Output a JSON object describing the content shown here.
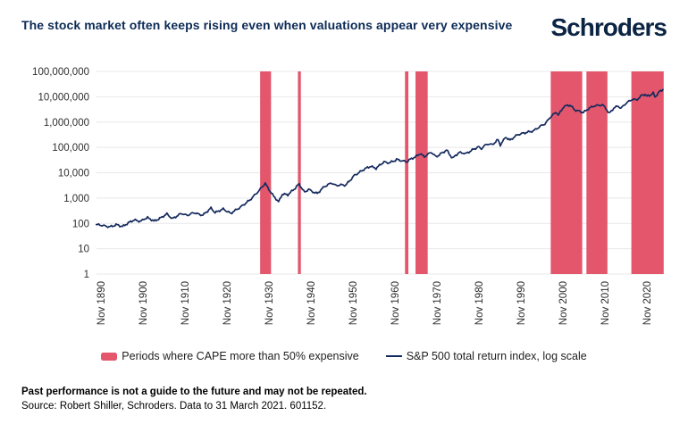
{
  "header": {
    "title": "The stock market often keeps rising even when valuations appear very expensive",
    "logo": "Schroders"
  },
  "colors": {
    "title_navy": "#0d2b57",
    "logo_navy": "#0c2444",
    "line_navy": "#152a5e",
    "band_red": "#e3566c",
    "grid_gray": "#e8e8e8",
    "axis_text": "#2e2e2e"
  },
  "legend": {
    "items": [
      {
        "type": "band",
        "label": "Periods where CAPE more than 50% expensive"
      },
      {
        "type": "line",
        "label": "S&P 500 total return index, log scale"
      }
    ]
  },
  "footer": {
    "disclaimer": "Past performance is not a guide to the future and may not be repeated.",
    "source": "Source: Robert Shiller, Schroders. Data to 31 March 2021. 601152."
  },
  "chart_data": {
    "type": "line",
    "title": "The stock market often keeps rising even when valuations appear very expensive",
    "y_axis": {
      "scale": "log",
      "ylim": [
        1,
        100000000
      ],
      "ticks": [
        {
          "value": 100000000,
          "label": "100,000,000"
        },
        {
          "value": 10000000,
          "label": "10,000,000"
        },
        {
          "value": 1000000,
          "label": "1,000,000"
        },
        {
          "value": 100000,
          "label": "100,000"
        },
        {
          "value": 10000,
          "label": "10,000"
        },
        {
          "value": 1000,
          "label": "1,000"
        },
        {
          "value": 100,
          "label": "100"
        },
        {
          "value": 10,
          "label": "10"
        },
        {
          "value": 1,
          "label": "1"
        }
      ]
    },
    "x_axis": {
      "ticks": [
        {
          "year": 1890,
          "label": "Nov 1890"
        },
        {
          "year": 1900,
          "label": "Nov 1900"
        },
        {
          "year": 1910,
          "label": "Nov 1910"
        },
        {
          "year": 1920,
          "label": "Nov 1920"
        },
        {
          "year": 1930,
          "label": "Nov 1930"
        },
        {
          "year": 1940,
          "label": "Nov 1940"
        },
        {
          "year": 1950,
          "label": "Nov 1950"
        },
        {
          "year": 1960,
          "label": "Nov 1960"
        },
        {
          "year": 1970,
          "label": "Nov 1970"
        },
        {
          "year": 1980,
          "label": "Nov 1980"
        },
        {
          "year": 1990,
          "label": "Nov 1990"
        },
        {
          "year": 2000,
          "label": "Nov 2000"
        },
        {
          "year": 2010,
          "label": "Nov 2010"
        },
        {
          "year": 2020,
          "label": "Nov 2020"
        }
      ]
    },
    "bands": {
      "name": "Periods where CAPE more than 50% expensive",
      "color": "#e3566c",
      "ranges": [
        [
          1927.9,
          1930.5
        ],
        [
          1936.9,
          1937.6
        ],
        [
          1962.4,
          1963.2
        ],
        [
          1964.9,
          1967.8
        ],
        [
          1997.1,
          2004.6
        ],
        [
          2005.6,
          2010.6
        ],
        [
          2016.3,
          2024.0
        ]
      ]
    },
    "series": [
      {
        "name": "S&P 500 total return index, log scale",
        "color": "#152a5e",
        "points": [
          [
            1888.9,
            87
          ],
          [
            1890.0,
            83
          ],
          [
            1891.9,
            74
          ],
          [
            1893.6,
            87
          ],
          [
            1895.1,
            77
          ],
          [
            1897.9,
            135
          ],
          [
            1899.6,
            124
          ],
          [
            1901.1,
            173
          ],
          [
            1902.6,
            120
          ],
          [
            1905.7,
            230
          ],
          [
            1907.0,
            148
          ],
          [
            1909.1,
            240
          ],
          [
            1910.6,
            213
          ],
          [
            1912.3,
            260
          ],
          [
            1914.3,
            213
          ],
          [
            1916.2,
            390
          ],
          [
            1917.2,
            260
          ],
          [
            1919.1,
            360
          ],
          [
            1920.9,
            240
          ],
          [
            1923.4,
            475
          ],
          [
            1925.5,
            875
          ],
          [
            1927.7,
            1970
          ],
          [
            1929.1,
            3800
          ],
          [
            1930.0,
            2230
          ],
          [
            1931.1,
            1160
          ],
          [
            1932.3,
            720
          ],
          [
            1933.2,
            1430
          ],
          [
            1934.5,
            1310
          ],
          [
            1935.7,
            2060
          ],
          [
            1937.2,
            3480
          ],
          [
            1938.5,
            1620
          ],
          [
            1939.4,
            2330
          ],
          [
            1940.2,
            1890
          ],
          [
            1941.5,
            1550
          ],
          [
            1943.2,
            2740
          ],
          [
            1944.9,
            4100
          ],
          [
            1946.0,
            3100
          ],
          [
            1948.3,
            3350
          ],
          [
            1950.4,
            8200
          ],
          [
            1952.6,
            13200
          ],
          [
            1954.3,
            18400
          ],
          [
            1955.5,
            14500
          ],
          [
            1957.4,
            26700
          ],
          [
            1958.9,
            24500
          ],
          [
            1960.4,
            33900
          ],
          [
            1962.8,
            26700
          ],
          [
            1964.5,
            40000
          ],
          [
            1966.0,
            55400
          ],
          [
            1967.0,
            41700
          ],
          [
            1968.7,
            65000
          ],
          [
            1969.8,
            43500
          ],
          [
            1971.1,
            60000
          ],
          [
            1972.3,
            76700
          ],
          [
            1973.8,
            37100
          ],
          [
            1975.3,
            65000
          ],
          [
            1976.8,
            55400
          ],
          [
            1978.7,
            86000
          ],
          [
            1979.8,
            106000
          ],
          [
            1980.6,
            90000
          ],
          [
            1982.1,
            142000
          ],
          [
            1983.2,
            131000
          ],
          [
            1984.5,
            205000
          ],
          [
            1985.1,
            123000
          ],
          [
            1986.4,
            253000
          ],
          [
            1987.4,
            192000
          ],
          [
            1989.4,
            325000
          ],
          [
            1991.5,
            400000
          ],
          [
            1993.2,
            470000
          ],
          [
            1995.7,
            860000
          ],
          [
            1997.2,
            1660000
          ],
          [
            1998.5,
            2420000
          ],
          [
            1998.9,
            1900000
          ],
          [
            2000.2,
            4200000
          ],
          [
            2001.7,
            4600000
          ],
          [
            2002.8,
            3100000
          ],
          [
            2003.9,
            2750000
          ],
          [
            2004.9,
            2450000
          ],
          [
            2006.0,
            3400000
          ],
          [
            2007.4,
            4200000
          ],
          [
            2009.4,
            4950000
          ],
          [
            2010.2,
            3650000
          ],
          [
            2011.0,
            2200000
          ],
          [
            2012.1,
            3500000
          ],
          [
            2013.2,
            4200000
          ],
          [
            2013.8,
            3500000
          ],
          [
            2014.9,
            5500000
          ],
          [
            2016.6,
            7800000
          ],
          [
            2017.4,
            7200000
          ],
          [
            2018.9,
            11800000
          ],
          [
            2019.6,
            12800000
          ],
          [
            2020.0,
            10100000
          ],
          [
            2021.5,
            13900000
          ],
          [
            2021.9,
            9700000
          ],
          [
            2023.0,
            16300000
          ],
          [
            2023.8,
            19300000
          ]
        ]
      }
    ],
    "layout": {
      "grid": "horizontal",
      "legend_position": "bottom"
    }
  }
}
